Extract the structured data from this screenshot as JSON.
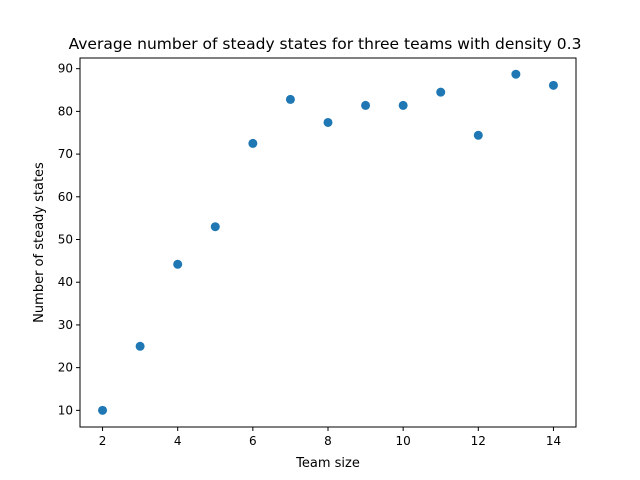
{
  "chart_data": {
    "type": "scatter",
    "title": "Average number of steady states for three teams with density 0.3",
    "xlabel": "Team size",
    "ylabel": "Number of steady states",
    "xlim": [
      1.4,
      14.6
    ],
    "ylim": [
      6.1,
      92.5
    ],
    "xticks": [
      2,
      4,
      6,
      8,
      10,
      12,
      14
    ],
    "yticks": [
      10,
      20,
      30,
      40,
      50,
      60,
      70,
      80,
      90
    ],
    "grid": false,
    "marker_color": "#1f77b4",
    "x": [
      2,
      3,
      4,
      5,
      6,
      7,
      8,
      9,
      10,
      11,
      12,
      13,
      14
    ],
    "y": [
      10.0,
      25.0,
      44.2,
      53.0,
      72.5,
      82.8,
      77.4,
      81.4,
      81.4,
      84.5,
      74.4,
      88.7,
      86.1
    ]
  }
}
